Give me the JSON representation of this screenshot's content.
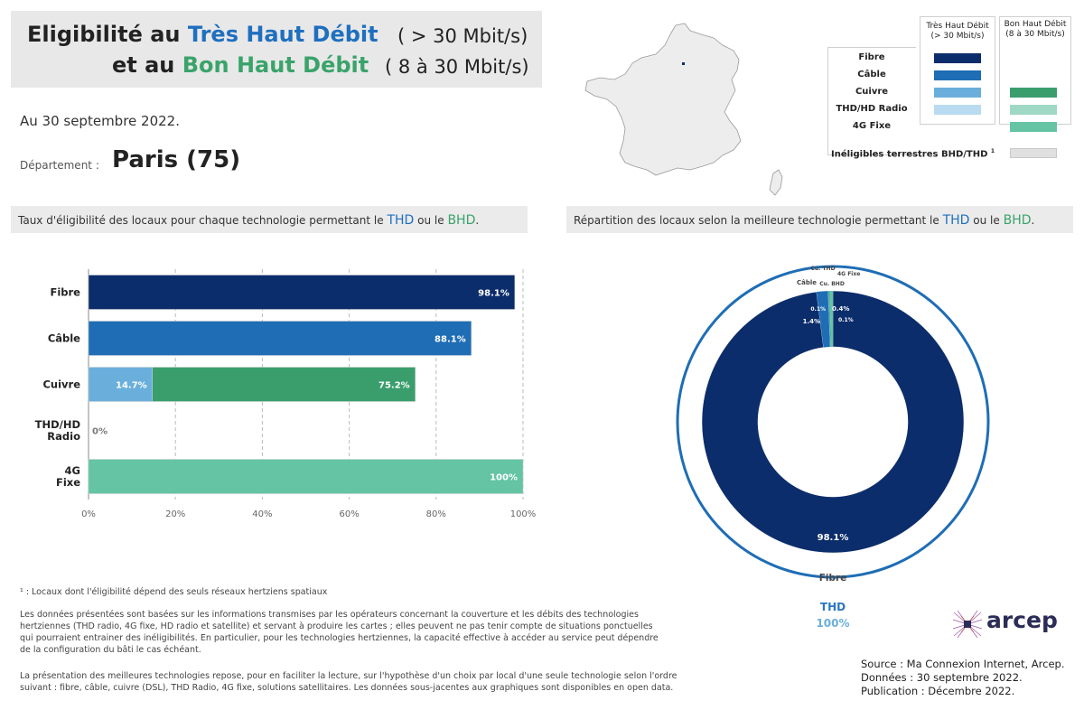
{
  "header": {
    "line1_prefix": "Eligibilité au",
    "line1_tech": "Très Haut Débit",
    "line1_rate": "( > 30 Mbit/s)",
    "line2_prefix": "et au",
    "line2_tech": "Bon Haut Débit",
    "line2_rate": "( 8 à 30 Mbit/s)"
  },
  "info": {
    "date": "Au 30 septembre 2022.",
    "department_label": "Département :",
    "department_name": "Paris (75)"
  },
  "legend": {
    "col_thd": [
      "Très Haut Débit",
      "(> 30 Mbit/s)"
    ],
    "col_bhd": [
      "Bon Haut Débit",
      "(8 à 30 Mbit/s)"
    ],
    "rows": [
      {
        "label": "Fibre",
        "thd_color": "#0c2d6b",
        "bhd_color": null
      },
      {
        "label": "Câble",
        "thd_color": "#1f6db5",
        "bhd_color": null
      },
      {
        "label": "Cuivre",
        "thd_color": "#6aafdc",
        "bhd_color": "#3a9e6c"
      },
      {
        "label": "THD/HD Radio",
        "thd_color": "#b9dbf1",
        "bhd_color": "#9fd8c4"
      },
      {
        "label": "4G Fixe",
        "thd_color": null,
        "bhd_color": "#64c4a4"
      }
    ],
    "ineligible_label": "Inéligibles terrestres BHD/THD",
    "ineligible_sup": "1",
    "ineligible_color": "#e0e0e0"
  },
  "left_section": {
    "title_prefix": "Taux d'éligibilité des locaux pour chaque technologie permettant le",
    "title_thd": "THD",
    "title_mid": "ou le",
    "title_bhd": "BHD",
    "title_end": "."
  },
  "right_section": {
    "title_prefix": "Répartition des locaux selon la meilleure technologie permettant le",
    "title_thd": "THD",
    "title_mid": "ou le",
    "title_bhd": "BHD",
    "title_end": "."
  },
  "chart_data": [
    {
      "type": "bar",
      "orientation": "horizontal",
      "stacked": true,
      "categories": [
        [
          "Fibre"
        ],
        [
          "Câble"
        ],
        [
          "Cuivre"
        ],
        [
          "THD/HD",
          "Radio"
        ],
        [
          "4G",
          "Fixe"
        ]
      ],
      "series": [
        {
          "name": "THD",
          "values": [
            98.1,
            88.1,
            14.7,
            0,
            0
          ],
          "colors": [
            "#0c2d6b",
            "#1f6db5",
            "#6aafdc",
            "#b9dbf1",
            "#64c4a4"
          ]
        },
        {
          "name": "BHD",
          "values": [
            0,
            0,
            60.5,
            0,
            100
          ],
          "colors": [
            "#0c2d6b",
            "#1f6db5",
            "#3a9e6c",
            "#9fd8c4",
            "#64c4a4"
          ]
        }
      ],
      "data_labels": [
        [
          {
            "text": "98.1%",
            "at": 98.1
          }
        ],
        [
          {
            "text": "88.1%",
            "at": 88.1
          }
        ],
        [
          {
            "text": "14.7%",
            "at": 14.7
          },
          {
            "text": "75.2%",
            "at": 75.2
          }
        ],
        [
          {
            "text": "0%",
            "at": 0
          }
        ],
        [
          {
            "text": "100%",
            "at": 100
          }
        ]
      ],
      "xlim": [
        0,
        100
      ],
      "xticks": [
        "0%",
        "20%",
        "40%",
        "60%",
        "80%",
        "100%"
      ],
      "grid": true
    },
    {
      "type": "pie",
      "donut": true,
      "slices": [
        {
          "label": "Fibre",
          "value": 98.1,
          "color": "#0c2d6b",
          "value_label": "98.1%"
        },
        {
          "label": "Câble",
          "value": 1.4,
          "color": "#1f6db5",
          "value_label": "1.4%"
        },
        {
          "label": "Cu. THD",
          "value": 0.1,
          "color": "#6aafdc",
          "value_label": "0.1%"
        },
        {
          "label": "Cu. BHD",
          "value": 0.1,
          "color": "#3a9e6c",
          "value_label": "0.1%"
        },
        {
          "label": "4G Fixe",
          "value": 0.4,
          "color": "#64c4a4",
          "value_label": "0.4%"
        }
      ],
      "outer_ring": {
        "label": "THD",
        "value_label": "100%",
        "color": "#1f6db5"
      }
    }
  ],
  "footnote": "¹ : Locaux dont l'éligibilité dépend des seuls réseaux hertziens spatiaux",
  "paragraph1": [
    "Les données présentées sont basées sur les informations transmises par les opérateurs concernant la couverture et les débits des technologies",
    "hertziennes (THD radio, 4G fixe, HD radio et satellite) et servant à produire les cartes ; elles peuvent ne pas tenir compte de situations ponctuelles",
    "qui pourraient entrainer des inéligibilités. En particulier, pour les technologies hertziennes, la capacité effective à accéder au service peut dépendre",
    "de la configuration du bâti le cas échéant."
  ],
  "paragraph2": [
    "La présentation des meilleures technologies repose, pour en faciliter la lecture, sur l'hypothèse d'un choix par local d'une seule technologie selon l'ordre",
    "suivant : fibre, câble, cuivre (DSL), THD Radio, 4G fixe, solutions satellitaires. Les données sous-jacentes aux graphiques sont disponibles en open data."
  ],
  "source": {
    "line1": "Source : Ma Connexion Internet, Arcep.",
    "line2": "Données : 30 septembre 2022.",
    "line3": "Publication : Décembre 2022."
  },
  "logo_text": "arcep"
}
